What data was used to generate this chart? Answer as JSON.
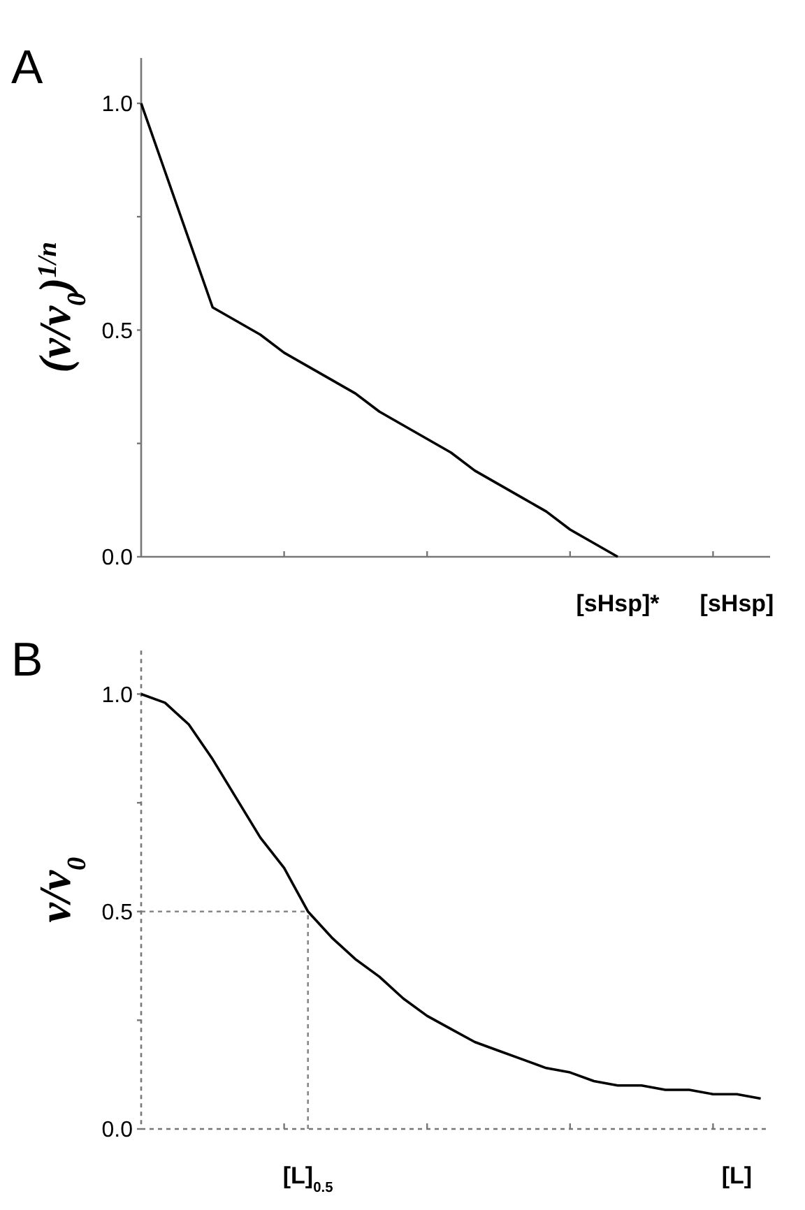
{
  "chart_data": [
    {
      "type": "line",
      "title": "A",
      "ylabel": "(v/v$_{0}$)$^{1/n}$",
      "ylim": [
        0,
        1.1
      ],
      "categories": [
        null,
        null,
        null,
        null,
        null,
        null,
        null,
        null,
        null,
        null,
        null,
        null,
        null,
        null,
        null,
        null,
        null,
        null,
        null,
        null,
        "[sHsp]*",
        null,
        null,
        null,
        null,
        "[sHsp]",
        null
      ],
      "yticks": [
        {
          "value": 0,
          "label": "0.0"
        },
        {
          "value": 0.25,
          "label": null
        },
        {
          "value": 0.5,
          "label": "0.5"
        },
        {
          "value": 0.75,
          "label": null
        },
        {
          "value": 1,
          "label": "1.0"
        }
      ],
      "series": [
        {
          "color": "#000000",
          "values": [
            1.0,
            0.85,
            0.7,
            0.55,
            0.52,
            0.49,
            0.45,
            0.42,
            0.39,
            0.36,
            0.32,
            0.29,
            0.26,
            0.23,
            0.19,
            0.16,
            0.13,
            0.1,
            0.06,
            0.03,
            0,
            null,
            null,
            null,
            null,
            null,
            null
          ]
        }
      ]
    },
    {
      "type": "line",
      "title": "B",
      "ylabel": "v/v$_{0}$",
      "ylim": [
        0,
        1.1
      ],
      "categories": [
        null,
        null,
        null,
        null,
        null,
        null,
        null,
        "[L]$_{0.5}$",
        null,
        null,
        null,
        null,
        null,
        null,
        null,
        null,
        null,
        null,
        null,
        null,
        null,
        null,
        null,
        null,
        null,
        "[L]",
        null
      ],
      "yticks": [
        {
          "value": 0,
          "label": "0.0"
        },
        {
          "value": 0.25,
          "label": null
        },
        {
          "value": 0.5,
          "label": "0.5"
        },
        {
          "value": 0.75,
          "label": null
        },
        {
          "value": 1,
          "label": "1.0"
        }
      ],
      "series": [
        {
          "color": "#000000",
          "values": [
            1.0,
            0.98,
            0.93,
            0.85,
            0.76,
            0.67,
            0.6,
            0.5,
            0.44,
            0.39,
            0.35,
            0.3,
            0.26,
            0.23,
            0.2,
            0.18,
            0.16,
            0.14,
            0.13,
            0.11,
            0.1,
            0.1,
            0.09,
            0.09,
            0.08,
            0.08,
            0.07
          ]
        }
      ],
      "ref_lines": [
        {
          "axis": "y",
          "value": 0.5,
          "label": null,
          "color": "#888888",
          "line_style": "dotted"
        },
        {
          "axis": "x",
          "value": "[L]$_{0.5}$",
          "label": null,
          "color": "#888888",
          "line_style": "dotted"
        }
      ]
    }
  ]
}
